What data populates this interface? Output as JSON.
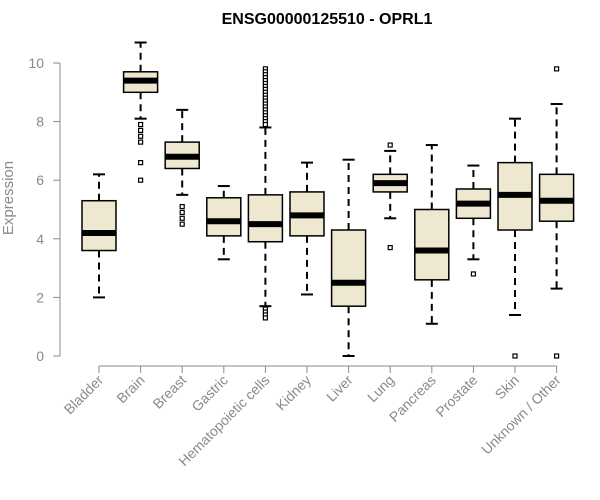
{
  "chart_data": {
    "type": "boxplot",
    "title": "ENSG00000125510 - OPRL1",
    "ylabel": "Expression",
    "xlabel": "",
    "ylim": [
      0,
      10
    ],
    "yticks": [
      0,
      2,
      4,
      6,
      8,
      10
    ],
    "grid": false,
    "box_fill": "#efe8d0",
    "box_stroke": "#000000",
    "median_color": "#000000",
    "axis_color": "#8a8a8a",
    "categories": [
      "Bladder",
      "Brain",
      "Breast",
      "Gastric",
      "Hematopoietic cells",
      "Kidney",
      "Liver",
      "Lung",
      "Pancreas",
      "Prostate",
      "Skin",
      "Unknown / Other"
    ],
    "boxes": [
      {
        "category": "Bladder",
        "whisker_low": 2.0,
        "q1": 3.6,
        "median": 4.2,
        "q3": 5.3,
        "whisker_high": 6.2,
        "outliers": []
      },
      {
        "category": "Brain",
        "whisker_low": 8.1,
        "q1": 9.0,
        "median": 9.4,
        "q3": 9.7,
        "whisker_high": 10.7,
        "outliers": [
          7.9,
          7.7,
          7.5,
          7.3,
          6.6,
          6.0
        ]
      },
      {
        "category": "Breast",
        "whisker_low": 5.5,
        "q1": 6.4,
        "median": 6.8,
        "q3": 7.3,
        "whisker_high": 8.4,
        "outliers": [
          5.1,
          4.9,
          4.7,
          4.5
        ]
      },
      {
        "category": "Gastric",
        "whisker_low": 3.3,
        "q1": 4.1,
        "median": 4.6,
        "q3": 5.4,
        "whisker_high": 5.8,
        "outliers": []
      },
      {
        "category": "Hematopoietic cells",
        "whisker_low": 1.7,
        "q1": 3.9,
        "median": 4.5,
        "q3": 5.5,
        "whisker_high": 7.8,
        "outliers": [
          9.8,
          9.7,
          9.6,
          9.5,
          9.4,
          9.3,
          9.2,
          9.1,
          9.0,
          8.9,
          8.8,
          8.7,
          8.6,
          8.5,
          8.4,
          8.3,
          8.2,
          8.1,
          8.0,
          7.9,
          1.6,
          1.5,
          1.4,
          1.3
        ]
      },
      {
        "category": "Kidney",
        "whisker_low": 2.1,
        "q1": 4.1,
        "median": 4.8,
        "q3": 5.6,
        "whisker_high": 6.6,
        "outliers": []
      },
      {
        "category": "Liver",
        "whisker_low": 0.0,
        "q1": 1.7,
        "median": 2.5,
        "q3": 4.3,
        "whisker_high": 6.7,
        "outliers": []
      },
      {
        "category": "Lung",
        "whisker_low": 4.7,
        "q1": 5.6,
        "median": 5.9,
        "q3": 6.2,
        "whisker_high": 7.0,
        "outliers": [
          7.2,
          3.7
        ]
      },
      {
        "category": "Pancreas",
        "whisker_low": 1.1,
        "q1": 2.6,
        "median": 3.6,
        "q3": 5.0,
        "whisker_high": 7.2,
        "outliers": []
      },
      {
        "category": "Prostate",
        "whisker_low": 3.3,
        "q1": 4.7,
        "median": 5.2,
        "q3": 5.7,
        "whisker_high": 6.5,
        "outliers": [
          2.8
        ]
      },
      {
        "category": "Skin",
        "whisker_low": 1.4,
        "q1": 4.3,
        "median": 5.5,
        "q3": 6.6,
        "whisker_high": 8.1,
        "outliers": [
          0.0
        ]
      },
      {
        "category": "Unknown / Other",
        "whisker_low": 2.3,
        "q1": 4.6,
        "median": 5.3,
        "q3": 6.2,
        "whisker_high": 8.6,
        "outliers": [
          9.8,
          0.0
        ]
      }
    ]
  }
}
